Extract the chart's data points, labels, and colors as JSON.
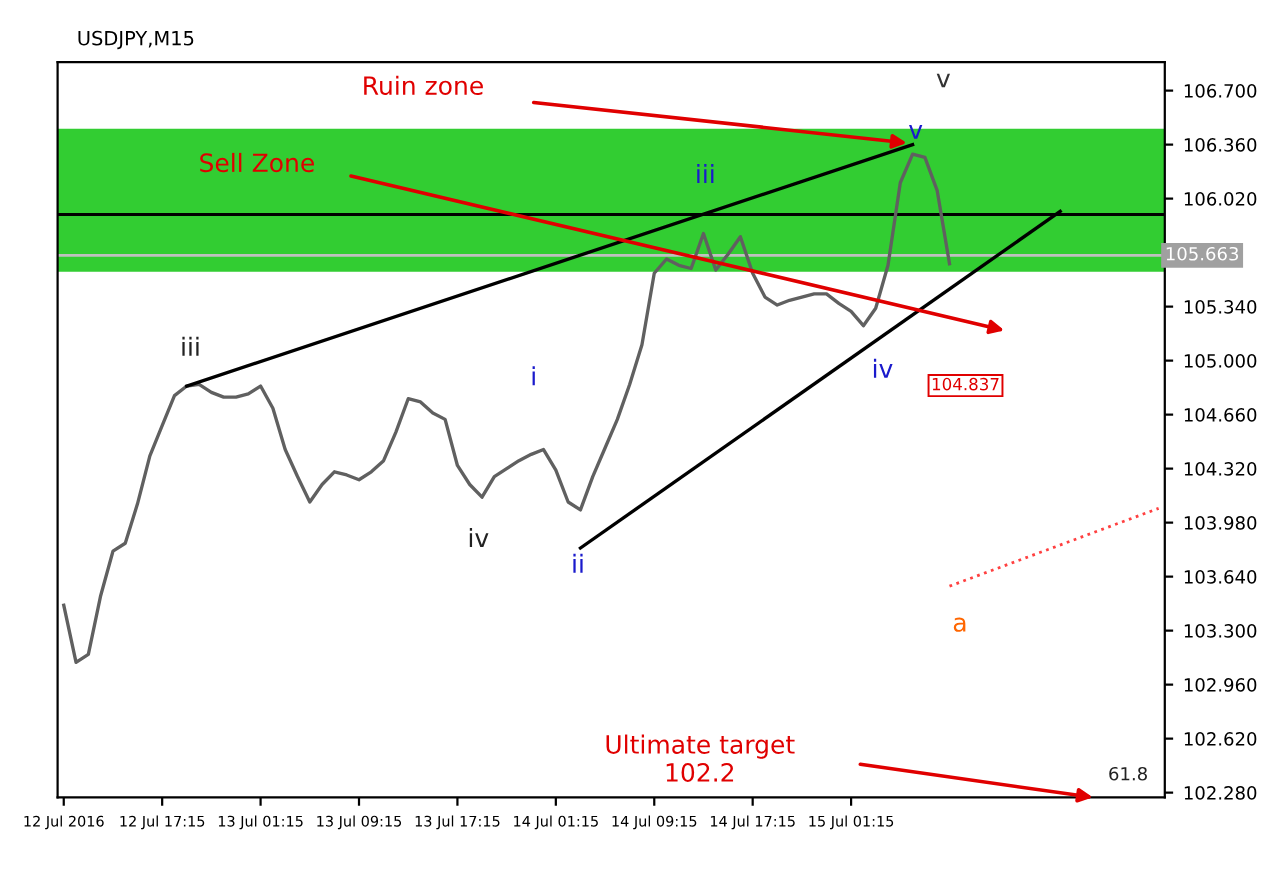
{
  "chart_data": {
    "type": "line",
    "title": "USDJPY,M15",
    "categories": [
      "12 Jul 2016",
      null,
      null,
      null,
      null,
      null,
      null,
      null,
      "12 Jul 17:15",
      null,
      null,
      null,
      null,
      null,
      null,
      null,
      "13 Jul 01:15",
      null,
      null,
      null,
      null,
      null,
      null,
      null,
      "13 Jul 09:15",
      null,
      null,
      null,
      null,
      null,
      null,
      null,
      "13 Jul 17:15",
      null,
      null,
      null,
      null,
      null,
      null,
      null,
      "14 Jul 01:15",
      null,
      null,
      null,
      null,
      null,
      null,
      null,
      "14 Jul 09:15",
      null,
      null,
      null,
      null,
      null,
      null,
      null,
      "14 Jul 17:15",
      null,
      null,
      null,
      null,
      null,
      null,
      null,
      "15 Jul 01:15",
      null,
      null,
      null,
      null,
      null,
      null,
      null,
      null,
      null,
      null,
      null,
      null,
      null,
      null,
      null,
      null,
      null,
      null,
      null,
      null,
      null,
      null,
      null,
      null,
      null
    ],
    "series": [
      {
        "type": "line",
        "color": "#606060",
        "values": [
          103.46,
          103.1,
          103.15,
          103.52,
          103.8,
          103.85,
          104.1,
          104.4,
          104.59,
          104.78,
          104.84,
          104.85,
          104.8,
          104.77,
          104.77,
          104.79,
          104.84,
          104.7,
          104.44,
          104.27,
          104.11,
          104.22,
          104.3,
          104.28,
          104.25,
          104.3,
          104.37,
          104.55,
          104.76,
          104.74,
          104.67,
          104.63,
          104.34,
          104.22,
          104.14,
          104.27,
          104.32,
          104.37,
          104.41,
          104.44,
          104.31,
          104.11,
          104.06,
          104.27,
          104.45,
          104.63,
          104.85,
          105.1,
          105.55,
          105.64,
          105.6,
          105.58,
          105.8,
          105.57,
          105.67,
          105.78,
          105.55,
          105.4,
          105.35,
          105.38,
          105.4,
          105.42,
          105.42,
          105.36,
          105.31,
          105.22,
          105.33,
          105.6,
          106.12,
          106.3,
          106.28,
          106.07,
          105.61,
          null,
          null,
          null,
          null,
          null,
          null,
          null,
          null,
          null,
          null,
          null,
          null,
          null,
          null,
          null,
          null,
          null
        ]
      },
      {
        "type": "line",
        "color": "#000000",
        "values": [
          null,
          null,
          null,
          null,
          null,
          null,
          null,
          null,
          null,
          null,
          104.84,
          null,
          null,
          null,
          null,
          null,
          null,
          null,
          null,
          null,
          null,
          null,
          null,
          null,
          null,
          null,
          null,
          null,
          null,
          null,
          null,
          null,
          null,
          null,
          null,
          null,
          null,
          null,
          null,
          null,
          null,
          null,
          null,
          null,
          null,
          null,
          null,
          null,
          null,
          null,
          null,
          null,
          null,
          null,
          null,
          null,
          null,
          null,
          null,
          null,
          null,
          null,
          null,
          null,
          null,
          null,
          null,
          null,
          null,
          106.36,
          null,
          null,
          null,
          null,
          null,
          null,
          null,
          null,
          null,
          null,
          null,
          null,
          null,
          null,
          null,
          null,
          null,
          null,
          null,
          null
        ]
      },
      {
        "type": "line",
        "color": "#000000",
        "values": [
          null,
          null,
          null,
          null,
          null,
          null,
          null,
          null,
          null,
          null,
          null,
          null,
          null,
          null,
          null,
          null,
          null,
          null,
          null,
          null,
          null,
          null,
          null,
          null,
          null,
          null,
          null,
          null,
          null,
          null,
          null,
          null,
          null,
          null,
          null,
          null,
          null,
          null,
          null,
          null,
          null,
          null,
          103.82,
          null,
          null,
          null,
          null,
          null,
          null,
          null,
          null,
          null,
          null,
          null,
          null,
          null,
          null,
          null,
          null,
          null,
          null,
          null,
          null,
          null,
          null,
          null,
          null,
          null,
          null,
          null,
          null,
          null,
          null,
          null,
          null,
          null,
          null,
          null,
          null,
          null,
          null,
          105.94,
          null,
          null,
          null,
          null,
          null,
          null,
          null,
          null
        ]
      },
      {
        "type": "line",
        "color": "#ff4040",
        "line_style": "dotted",
        "values": [
          null,
          null,
          null,
          null,
          null,
          null,
          null,
          null,
          null,
          null,
          null,
          null,
          null,
          null,
          null,
          null,
          null,
          null,
          null,
          null,
          null,
          null,
          null,
          null,
          null,
          null,
          null,
          null,
          null,
          null,
          null,
          null,
          null,
          null,
          null,
          null,
          null,
          null,
          null,
          null,
          null,
          null,
          null,
          null,
          null,
          null,
          null,
          null,
          null,
          null,
          null,
          null,
          null,
          null,
          null,
          null,
          null,
          null,
          null,
          null,
          null,
          null,
          null,
          null,
          null,
          null,
          null,
          null,
          null,
          null,
          null,
          null,
          103.58,
          null,
          null,
          null,
          null,
          null,
          null,
          null,
          null,
          null,
          null,
          null,
          null,
          null,
          null,
          null,
          null,
          104.07
        ]
      }
    ],
    "bands": [
      {
        "axis": "y",
        "from": 105.56,
        "to": 106.46,
        "color": "#32cd32"
      }
    ],
    "ref_lines": [
      {
        "axis": "y",
        "value": 105.92,
        "color": "#000000"
      },
      {
        "axis": "y",
        "value": 105.663,
        "label": "105.663",
        "color": "#c0c0c0"
      }
    ],
    "annotations": [
      "Sell Zone",
      "Ruin zone",
      "Ultimate target\n102.2",
      "iii",
      "iv",
      "i",
      "ii",
      "iii",
      "iv",
      "v",
      "v",
      "a",
      "104.837",
      "61.8"
    ],
    "ylim": [
      102.25,
      106.88
    ],
    "yticks": [
      {
        "value": 102.28,
        "label": "102.280"
      },
      {
        "value": 102.62,
        "label": "102.620"
      },
      {
        "value": 102.96,
        "label": "102.960"
      },
      {
        "value": 103.3,
        "label": "103.300"
      },
      {
        "value": 103.64,
        "label": "103.640"
      },
      {
        "value": 103.98,
        "label": "103.980"
      },
      {
        "value": 104.32,
        "label": "104.320"
      },
      {
        "value": 104.66,
        "label": "104.660"
      },
      {
        "value": 105.0,
        "label": "105.000"
      },
      {
        "value": 105.34,
        "label": "105.340"
      },
      {
        "value": 106.02,
        "label": "106.020"
      },
      {
        "value": 106.36,
        "label": "106.360"
      },
      {
        "value": 106.7,
        "label": "106.700"
      }
    ],
    "grid": false,
    "legend": false
  }
}
